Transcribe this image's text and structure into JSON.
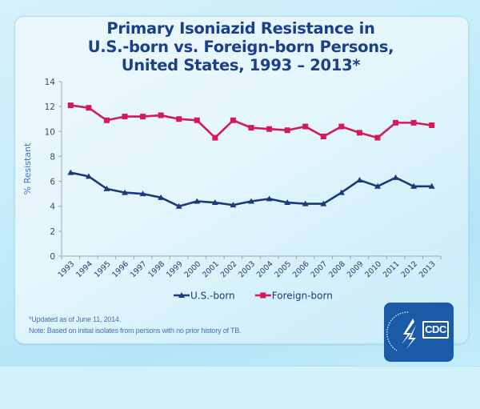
{
  "title": {
    "line1": "Primary Isoniazid Resistance in",
    "line2": "U.S.-born vs. Foreign-born Persons,",
    "line3": "United States, 1993 – 2013*"
  },
  "footnotes": {
    "updated": "*Updated as of June 11, 2014.",
    "note": "Note: Based on initial isolates from persons with no prior history of TB."
  },
  "logo": {
    "text": "CDC",
    "icon": "hhs-eagle-icon",
    "color": "#1a5aa6"
  },
  "colors": {
    "us_born": "#1b3a7a",
    "foreign_born": "#d4185a",
    "title": "#1b3f8c",
    "axis_title": "#3e78c4"
  },
  "chart_data": {
    "type": "line",
    "title": "Primary Isoniazid Resistance in U.S.-born vs. Foreign-born Persons, United States, 1993 – 2013*",
    "xlabel": "",
    "ylabel": "% Resistant",
    "x": [
      "1993",
      "1994",
      "1995",
      "1996",
      "1997",
      "1998",
      "1999",
      "2000",
      "2001",
      "2002",
      "2003",
      "2004",
      "2005",
      "2006",
      "2007",
      "2008",
      "2009",
      "2010",
      "2011",
      "2012",
      "2013"
    ],
    "ylim": [
      0,
      14
    ],
    "yticks": [
      0,
      2,
      4,
      6,
      8,
      10,
      12,
      14
    ],
    "grid": false,
    "legend_position": "bottom-center",
    "series": [
      {
        "name": "U.S.-born",
        "marker": "triangle",
        "values": [
          6.7,
          6.4,
          5.4,
          5.1,
          5.0,
          4.7,
          4.0,
          4.4,
          4.3,
          4.1,
          4.4,
          4.6,
          4.3,
          4.2,
          4.2,
          5.1,
          6.1,
          5.6,
          6.3,
          5.6,
          5.6
        ]
      },
      {
        "name": "Foreign-born",
        "marker": "square",
        "values": [
          12.1,
          11.9,
          10.9,
          11.2,
          11.2,
          11.3,
          11.0,
          10.9,
          9.5,
          10.9,
          10.3,
          10.2,
          10.1,
          10.4,
          9.6,
          10.4,
          9.9,
          9.5,
          10.7,
          10.7,
          10.5
        ]
      }
    ]
  }
}
